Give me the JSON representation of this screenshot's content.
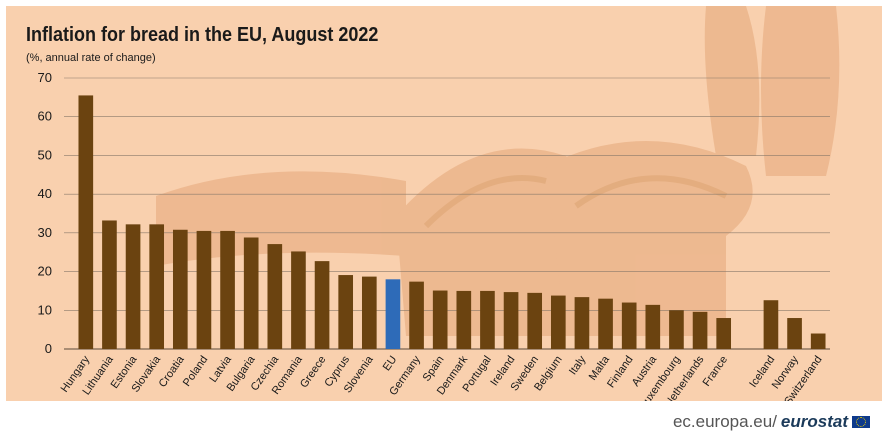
{
  "title": "Inflation for bread in the EU, August 2022",
  "subtitle": "(%, annual rate of change)",
  "footer": {
    "url": "ec.europa.eu/",
    "brand": "eurostat"
  },
  "colors": {
    "background": "#f9d0ae",
    "bar": "#6b4310",
    "highlight": "#2e6bb8",
    "grid": "#8a7a6a",
    "art": "#eab287"
  },
  "chart_data": {
    "type": "bar",
    "ylim": [
      0,
      70
    ],
    "yticks": [
      0,
      10,
      20,
      30,
      40,
      50,
      60,
      70
    ],
    "grid": true,
    "highlight": "EU",
    "categories": [
      "Hungary",
      "Lithuania",
      "Estonia",
      "Slovakia",
      "Croatia",
      "Poland",
      "Latvia",
      "Bulgaria",
      "Czechia",
      "Romania",
      "Greece",
      "Cyprus",
      "Slovenia",
      "EU",
      "Germany",
      "Spain",
      "Denmark",
      "Portugal",
      "Ireland",
      "Sweden",
      "Belgium",
      "Italy",
      "Malta",
      "Finland",
      "Austria",
      "Luxembourg",
      "Netherlands",
      "France",
      "",
      "Iceland",
      "Norway",
      "Switzerland"
    ],
    "values": [
      65.5,
      33.2,
      32.2,
      32.2,
      30.8,
      30.5,
      30.5,
      28.8,
      27.1,
      25.2,
      22.7,
      19.1,
      18.7,
      18.0,
      17.4,
      15.1,
      15.0,
      15.0,
      14.7,
      14.5,
      13.8,
      13.4,
      13.0,
      12.0,
      11.4,
      10.0,
      9.6,
      8.0,
      null,
      12.6,
      8.0,
      4.0
    ]
  }
}
